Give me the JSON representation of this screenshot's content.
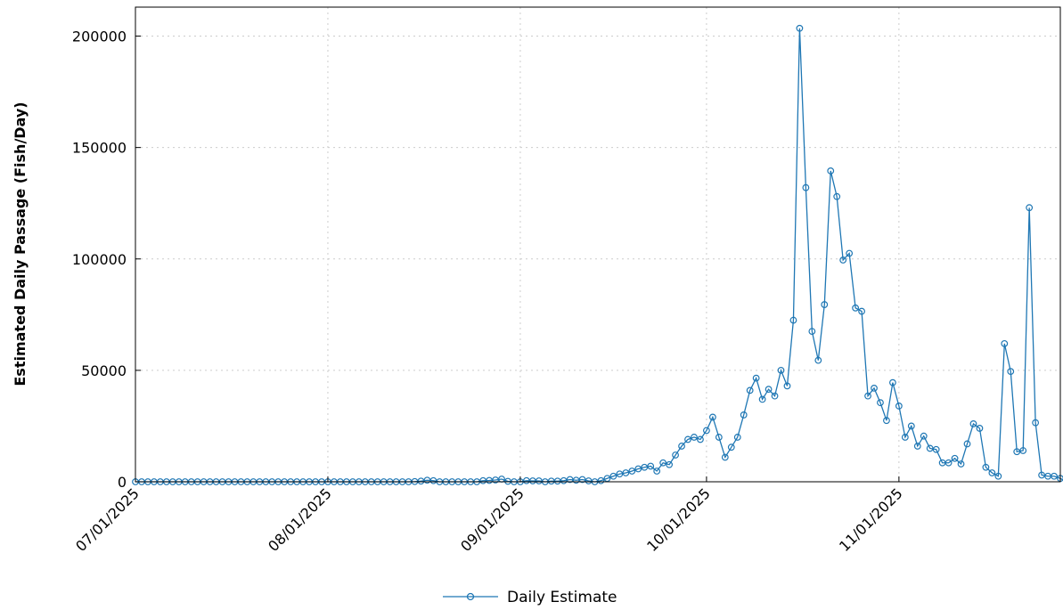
{
  "chart_data": {
    "type": "line",
    "title": "",
    "xlabel": "",
    "ylabel": "Estimated Daily Passage (Fish/Day)",
    "x_start": "07/01/2025",
    "x_end": "11/27/2025",
    "x_ticks": [
      "07/01/2025",
      "08/01/2025",
      "09/01/2025",
      "10/01/2025",
      "11/01/2025"
    ],
    "ylim": [
      0,
      213000
    ],
    "y_ticks": [
      0,
      50000,
      100000,
      150000,
      200000
    ],
    "grid": true,
    "legend_position": "bottom-center",
    "colors": {
      "series": "#1f77b4",
      "grid": "#cccccc",
      "axis": "#000000"
    },
    "series": [
      {
        "name": "Daily Estimate",
        "marker": "circle",
        "values": [
          0,
          0,
          0,
          0,
          0,
          0,
          0,
          0,
          0,
          0,
          0,
          0,
          0,
          0,
          0,
          0,
          0,
          0,
          0,
          0,
          0,
          0,
          0,
          0,
          0,
          0,
          0,
          0,
          0,
          0,
          0,
          0,
          0,
          0,
          0,
          0,
          0,
          0,
          0,
          0,
          0,
          0,
          0,
          0,
          0,
          100,
          300,
          700,
          500,
          0,
          0,
          0,
          0,
          0,
          0,
          0,
          500,
          600,
          800,
          1200,
          200,
          0,
          0,
          500,
          400,
          400,
          0,
          300,
          300,
          500,
          1000,
          700,
          1000,
          400,
          0,
          500,
          1500,
          2500,
          3500,
          4000,
          4800,
          5800,
          6500,
          7000,
          4800,
          8500,
          7700,
          12000,
          16000,
          19000,
          20000,
          19000,
          23000,
          29000,
          20000,
          11000,
          15500,
          20000,
          30000,
          41000,
          46500,
          37000,
          41500,
          38500,
          50000,
          43000,
          72500,
          203500,
          132000,
          67500,
          54500,
          79500,
          139500,
          128000,
          99500,
          102500,
          78000,
          76500,
          38500,
          42000,
          35500,
          27500,
          44500,
          34000,
          20000,
          25000,
          16000,
          20500,
          15000,
          14500,
          8500,
          8500,
          10500,
          8000,
          17000,
          26000,
          24000,
          6500,
          4000,
          2500,
          62000,
          49500,
          13500,
          14000,
          123000,
          26500,
          3000,
          2500,
          2500,
          1500,
          0,
          1500
        ]
      }
    ]
  }
}
